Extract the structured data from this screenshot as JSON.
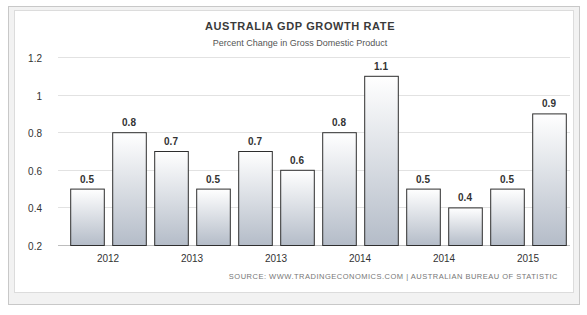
{
  "chart_data": {
    "type": "bar",
    "title": "AUSTRALIA GDP GROWTH RATE",
    "subtitle": "Percent Change in Gross Domestic Product",
    "source": "SOURCE: WWW.TRADINGECONOMICS.COM | AUSTRALIAN BUREAU OF STATISTIC",
    "categories": [
      "2012",
      null,
      "2013",
      null,
      "2013",
      null,
      "2014",
      null,
      "2014",
      null,
      "2015",
      null
    ],
    "values": [
      0.5,
      0.8,
      0.7,
      0.5,
      0.7,
      0.6,
      0.8,
      1.1,
      0.5,
      0.4,
      0.5,
      0.9
    ],
    "color": "#b4bcc8",
    "ylim": [
      0.2,
      1.2
    ],
    "yticks": [
      0.2,
      0.4,
      0.6,
      0.8,
      1,
      1.2
    ],
    "grid": true,
    "data_labels": true
  }
}
